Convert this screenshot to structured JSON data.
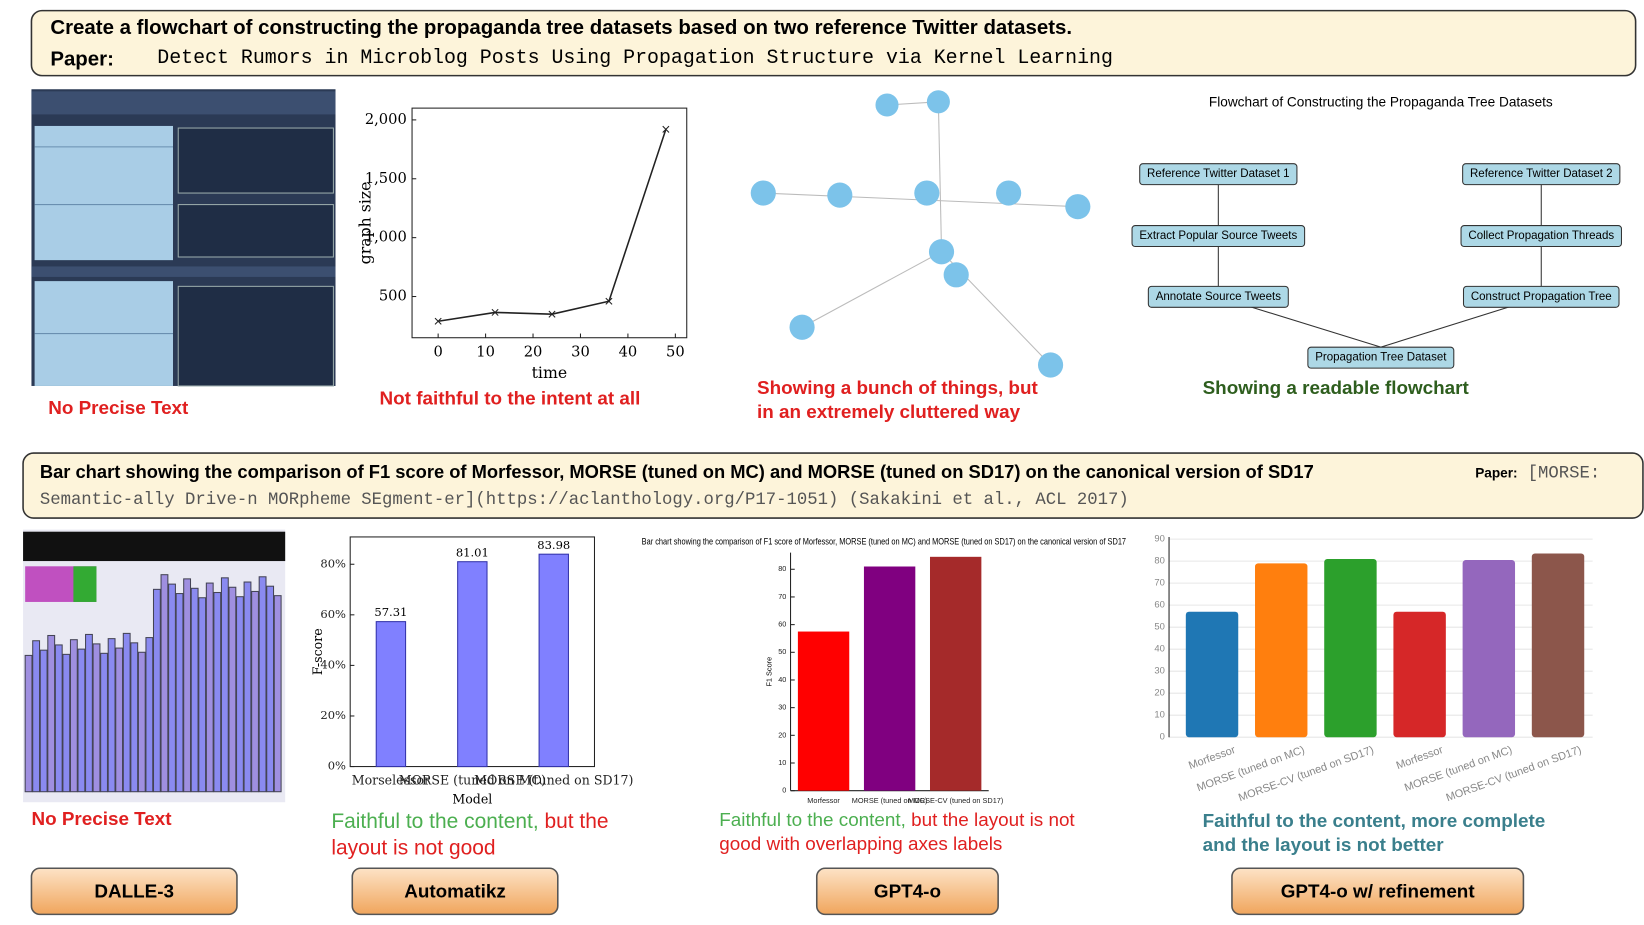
{
  "top": {
    "prompt": "Create a flowchart of constructing the propaganda tree datasets based on two reference Twitter datasets.",
    "paper_label": "Paper:",
    "paper": "Detect Rumors in Microblog Posts Using Propagation Structure via Kernel Learning"
  },
  "top_panels": [
    {
      "caption_lines": [
        [
          {
            "text": "No Precise Text",
            "color": "#e02020"
          }
        ]
      ]
    },
    {
      "caption_lines": [
        [
          {
            "text": "Not faithful to the intent at all",
            "color": "#e02020"
          }
        ]
      ],
      "chart": {
        "type": "line",
        "xlabel": "time",
        "ylabel": "graph size",
        "x": [
          0,
          12,
          24,
          36,
          48
        ],
        "values": [
          290,
          365,
          350,
          460,
          1920
        ],
        "color": "#222222",
        "xlim": [
          -5.5,
          52.4
        ],
        "ylim": [
          150,
          2100
        ],
        "xticks": [
          0,
          10,
          20,
          30,
          40,
          50
        ],
        "yticks": [
          500,
          {
            "value": 1000,
            "label": "1,000"
          },
          {
            "value": 1500,
            "label": "1,500"
          },
          {
            "value": 2000,
            "label": "2,000"
          }
        ]
      }
    },
    {
      "caption_lines": [
        [
          {
            "text": "Showing a bunch of things, but",
            "color": "#e02020"
          }
        ],
        [
          {
            "text": "in an extremely cluttered way",
            "color": "#e02020"
          }
        ]
      ]
    },
    {
      "caption_lines": [
        [
          {
            "text": "Showing a readable flowchart",
            "color": "#2e5e1e"
          }
        ]
      ],
      "flowchart": {
        "title": "Flowchart of Constructing the Propaganda Tree Datasets",
        "nodes": [
          "Reference Twitter Dataset 1",
          "Extract Popular Source Tweets",
          "Annotate Source Tweets",
          "Reference Twitter Dataset 2",
          "Collect Propagation Threads",
          "Construct Propagation Tree",
          "Propagation Tree Dataset"
        ]
      }
    }
  ],
  "bottom": {
    "prompt": "Bar chart showing the comparison of F1 score of Morfessor, MORSE (tuned on MC) and MORSE (tuned on SD17) on the canonical version of SD17",
    "paper_label": "Paper:",
    "paper_lines": [
      "[MORSE:",
      "Semantic-ally Drive-n MORpheme SEgment-er](https://aclanthology.org/P17-1051) (Sakakini et al., ACL 2017)"
    ]
  },
  "bottom_panels": [
    {
      "button": "DALLE-3",
      "caption_lines": [
        [
          {
            "text": "No Precise Text",
            "color": "#e02020"
          }
        ]
      ]
    },
    {
      "button": "Automatikz",
      "caption_lines": [
        [
          {
            "text": "Faithful to the content,",
            "color": "#4caf50"
          },
          {
            "text": " but the",
            "color": "#e02020"
          }
        ],
        [
          {
            "text": "layout is not good",
            "color": "#e02020"
          }
        ]
      ],
      "chart": {
        "type": "bar",
        "xlabel": "Model",
        "ylabel": "F-score",
        "categories": [
          "Morselessor",
          "MORSE (tuned on MC)",
          "MORSE (tuned on SD17)"
        ],
        "values": [
          57.31,
          81.01,
          83.98
        ],
        "color": "#8080ff",
        "ylim": [
          0,
          90.8
        ],
        "yticks": [
          {
            "value": 0,
            "label": "0%"
          },
          {
            "value": 20,
            "label": "20%"
          },
          {
            "value": 40,
            "label": "40%"
          },
          {
            "value": 60,
            "label": "60%"
          },
          {
            "value": 80,
            "label": "80%"
          }
        ]
      }
    },
    {
      "button": "GPT4-o",
      "caption_lines": [
        [
          {
            "text": "Faithful to the content,",
            "color": "#4caf50"
          },
          {
            "text": " but the layout is not",
            "color": "#e02020"
          }
        ],
        [
          {
            "text": "good with overlapping axes labels",
            "color": "#e02020"
          }
        ]
      ],
      "chart": {
        "type": "bar",
        "title": "Bar chart showing the comparison of F1 score of Morfessor, MORSE (tuned on MC) and MORSE (tuned on SD17) on the canonical version of SD17",
        "ylabel": "F1 Score",
        "categories": [
          "Morfessor",
          "MORSE (tuned on MC)",
          "MORSE-CV (tuned on SD17)"
        ],
        "values": [
          57.5,
          81,
          84.5
        ],
        "colors": [
          "#ff0000",
          "#800080",
          "#a52a2a"
        ],
        "ylim": [
          0,
          86
        ],
        "yticks": [
          0,
          10,
          20,
          30,
          40,
          50,
          60,
          70,
          80
        ]
      }
    },
    {
      "button": "GPT4-o w/ refinement",
      "caption_lines": [
        [
          {
            "text": "Faithful to the content, more complete",
            "color": "#3a7f8c"
          }
        ],
        [
          {
            "text": "and the layout is not better",
            "color": "#3a7f8c"
          }
        ]
      ],
      "chart": {
        "type": "bar",
        "grid": true,
        "categories": [
          "Morfessor",
          "MORSE (tuned on MC)",
          "MORSE-CV (tuned on SD17)",
          "Morfessor",
          "MORSE (tuned on MC)",
          "MORSE-CV (tuned on SD17)"
        ],
        "values": [
          57,
          79,
          81,
          57,
          80.5,
          83.5
        ],
        "colors": [
          "#1f77b4",
          "#ff7f0e",
          "#2ca02c",
          "#d62728",
          "#9467bd",
          "#8c564b"
        ],
        "ylim": [
          0,
          91
        ],
        "yticks": [
          0,
          10,
          20,
          30,
          40,
          50,
          60,
          70,
          80,
          90
        ]
      }
    }
  ]
}
